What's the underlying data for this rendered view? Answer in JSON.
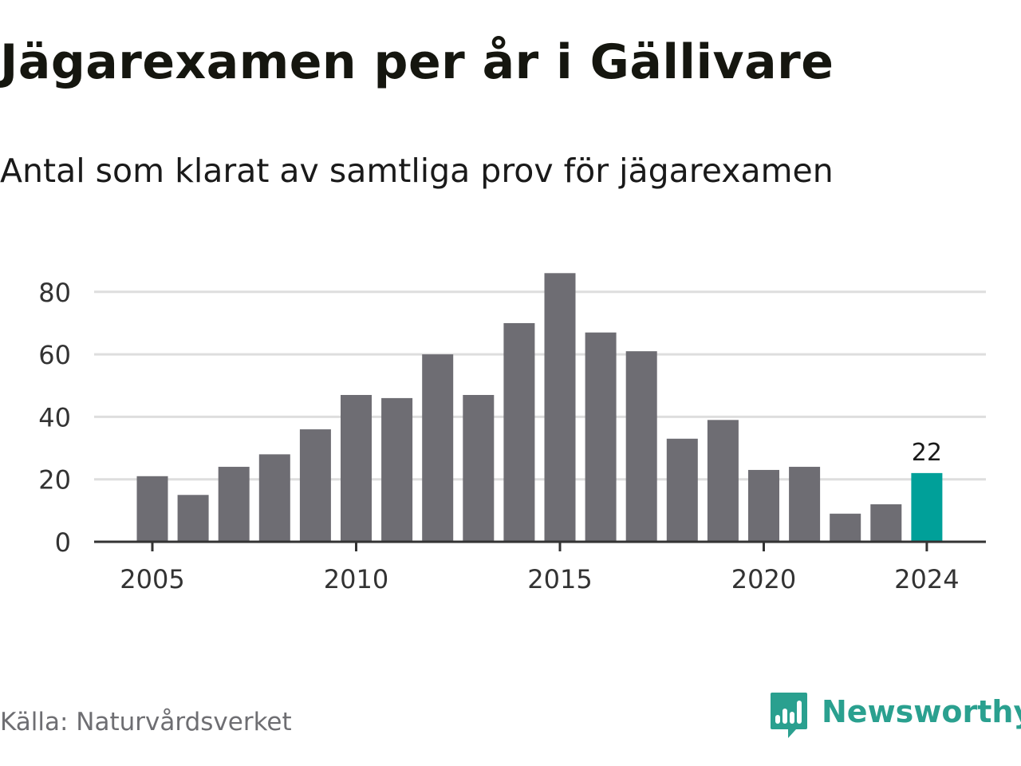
{
  "title": "Jägarexamen per år i Gällivare",
  "subtitle": "Antal som klarat av samtliga prov för jägarexamen",
  "source": "Källa: Naturvårdsverket",
  "brand": {
    "name": "Newsworthy",
    "icon": "bar-chart-speech-bubble-icon",
    "color": "#2aa08f"
  },
  "colors": {
    "bar": "#6e6d73",
    "highlight": "#00a099",
    "gridline": "#dedede",
    "axis": "#333333",
    "tick_text": "#333333"
  },
  "chart_data": {
    "type": "bar",
    "categories": [
      2005,
      2006,
      2007,
      2008,
      2009,
      2010,
      2011,
      2012,
      2013,
      2014,
      2015,
      2016,
      2017,
      2018,
      2019,
      2020,
      2021,
      2022,
      2023,
      2024
    ],
    "values": [
      21,
      15,
      24,
      28,
      36,
      47,
      46,
      60,
      47,
      70,
      86,
      67,
      61,
      33,
      39,
      23,
      24,
      9,
      12,
      22
    ],
    "highlight_category": 2024,
    "data_labels": [
      {
        "category": 2024,
        "text": "22"
      }
    ],
    "x_ticks": [
      2005,
      2010,
      2015,
      2020,
      2024
    ],
    "y_ticks": [
      0,
      20,
      40,
      60,
      80
    ],
    "ylim": [
      0,
      90
    ],
    "xlabel": "",
    "ylabel": "",
    "grid": true,
    "legend": false
  }
}
